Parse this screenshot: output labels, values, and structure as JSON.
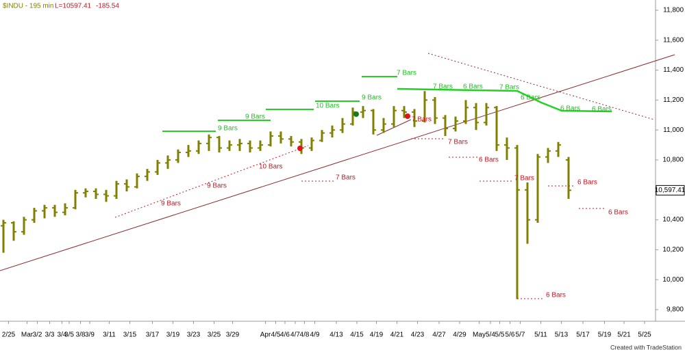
{
  "chart_data": {
    "type": "ohlc",
    "title": "$INDU - 195 min",
    "last_label": "L=10597.41",
    "change": "-185.54",
    "last_price_tag": "10,597.41",
    "credit": "Created with TradeStation",
    "color": "#808000",
    "x": [
      0,
      1,
      2,
      3,
      4,
      5,
      6,
      7,
      8,
      9,
      10,
      11,
      12,
      13,
      14,
      15,
      16,
      17,
      18,
      19,
      20,
      21,
      22,
      23,
      24,
      25,
      26,
      27,
      28,
      29,
      30,
      31,
      32,
      33,
      34,
      35,
      36,
      37,
      38,
      39,
      40,
      41,
      42,
      43,
      44,
      45,
      46,
      47,
      48,
      49,
      50,
      51,
      52,
      53,
      54,
      55
    ],
    "open": [
      10360,
      10380,
      10320,
      10400,
      10460,
      10480,
      10450,
      10480,
      10580,
      10590,
      10570,
      10560,
      10640,
      10620,
      10690,
      10720,
      10780,
      10800,
      10850,
      10860,
      10910,
      10950,
      10880,
      10900,
      10910,
      10880,
      10900,
      10960,
      10940,
      10920,
      10880,
      10930,
      10980,
      11000,
      11040,
      11120,
      11130,
      11000,
      11040,
      11130,
      11120,
      11060,
      11200,
      11080,
      11010,
      11060,
      11150,
      11050,
      11150,
      10900,
      10880,
      10600,
      10400,
      10820,
      10860,
      10800
    ],
    "high": [
      10400,
      10390,
      10420,
      10480,
      10500,
      10500,
      10510,
      10600,
      10610,
      10610,
      10600,
      10660,
      10670,
      10710,
      10740,
      10800,
      10830,
      10870,
      10900,
      10930,
      10970,
      10960,
      10930,
      10940,
      10930,
      10930,
      10990,
      10990,
      10960,
      10940,
      10950,
      11000,
      11030,
      11080,
      11150,
      11160,
      11140,
      11080,
      11160,
      11160,
      11140,
      11260,
      11220,
      11100,
      11090,
      11200,
      11180,
      11180,
      11160,
      10950,
      10900,
      10650,
      10840,
      10880,
      10920,
      10820
    ],
    "low": [
      10180,
      10260,
      10300,
      10380,
      10410,
      10420,
      10430,
      10470,
      10550,
      10540,
      10520,
      10540,
      10590,
      10610,
      10660,
      10700,
      10740,
      10780,
      10820,
      10840,
      10860,
      10850,
      10860,
      10860,
      10850,
      10860,
      10890,
      10910,
      10890,
      10840,
      10860,
      10920,
      10950,
      10980,
      11030,
      11080,
      10970,
      10980,
      11020,
      11080,
      11020,
      11050,
      11040,
      10960,
      10990,
      11040,
      11000,
      11030,
      10860,
      10800,
      9870,
      10240,
      10380,
      10780,
      10820,
      10540
    ],
    "close": [
      10380,
      10320,
      10400,
      10460,
      10480,
      10450,
      10480,
      10580,
      10590,
      10570,
      10560,
      10640,
      10620,
      10690,
      10720,
      10780,
      10800,
      10850,
      10860,
      10910,
      10950,
      10880,
      10900,
      10910,
      10880,
      10900,
      10960,
      10940,
      10920,
      10880,
      10930,
      10980,
      11000,
      11040,
      11120,
      11130,
      11000,
      11040,
      11130,
      11120,
      11060,
      11200,
      11080,
      11010,
      11060,
      11150,
      11050,
      11150,
      10900,
      10880,
      10600,
      10400,
      10820,
      10860,
      10900,
      10597.41
    ],
    "xlim": [
      0,
      63
    ],
    "xticks": [
      {
        "value": 0.5,
        "label": "2/25"
      },
      {
        "value": 2.3,
        "label": "Mar"
      },
      {
        "value": 3.3,
        "label": "3/2"
      },
      {
        "value": 4.5,
        "label": "3/3"
      },
      {
        "value": 5.7,
        "label": "3/4"
      },
      {
        "value": 6.4,
        "label": "3/5"
      },
      {
        "value": 7.5,
        "label": "3/8"
      },
      {
        "value": 8.4,
        "label": "3/9"
      },
      {
        "value": 10.3,
        "label": "3/11"
      },
      {
        "value": 12.3,
        "label": "3/15"
      },
      {
        "value": 14.5,
        "label": "3/17"
      },
      {
        "value": 16.5,
        "label": "3/19"
      },
      {
        "value": 18.5,
        "label": "3/23"
      },
      {
        "value": 20.5,
        "label": "3/25"
      },
      {
        "value": 22.3,
        "label": "3/29"
      },
      {
        "value": 25.5,
        "label": "Apr"
      },
      {
        "value": 26.5,
        "label": "4/5"
      },
      {
        "value": 27.4,
        "label": "4/6"
      },
      {
        "value": 28.4,
        "label": "4/7"
      },
      {
        "value": 29.3,
        "label": "4/8"
      },
      {
        "value": 30.3,
        "label": "4/9"
      },
      {
        "value": 32.4,
        "label": "4/13"
      },
      {
        "value": 34.4,
        "label": "4/15"
      },
      {
        "value": 36.3,
        "label": "4/19"
      },
      {
        "value": 38.3,
        "label": "4/21"
      },
      {
        "value": 40.3,
        "label": "4/23"
      },
      {
        "value": 42.4,
        "label": "4/27"
      },
      {
        "value": 44.4,
        "label": "4/29"
      },
      {
        "value": 46.3,
        "label": "May"
      },
      {
        "value": 47.4,
        "label": "5/4"
      },
      {
        "value": 48.3,
        "label": "5/5"
      },
      {
        "value": 49.3,
        "label": "5/6"
      },
      {
        "value": 50.3,
        "label": "5/7"
      },
      {
        "value": 52.3,
        "label": "5/11"
      },
      {
        "value": 54.3,
        "label": "5/13"
      },
      {
        "value": 56.4,
        "label": "5/17"
      },
      {
        "value": 58.5,
        "label": "5/19"
      },
      {
        "value": 60.4,
        "label": "5/21"
      },
      {
        "value": 62.4,
        "label": "5/25"
      }
    ],
    "ylim": [
      9800,
      11800
    ],
    "yticks": [
      {
        "value": 9800,
        "label": "9,800"
      },
      {
        "value": 10000,
        "label": "10,000"
      },
      {
        "value": 10200,
        "label": "10,200"
      },
      {
        "value": 10400,
        "label": "10,400"
      },
      {
        "value": 10600,
        "label": "10,600"
      },
      {
        "value": 10800,
        "label": "10,800"
      },
      {
        "value": 11000,
        "label": "11,000"
      },
      {
        "value": 11200,
        "label": "11,200"
      },
      {
        "value": 11400,
        "label": "11,400"
      },
      {
        "value": 11600,
        "label": "11,600"
      },
      {
        "value": 11800,
        "label": "11,800"
      }
    ],
    "green_labels": [
      "9 Bars",
      "9 Bars",
      "10 Bars",
      "9 Bars",
      "7 Bars",
      "7 Bars",
      "6 Bars",
      "7 Bars",
      "6 Bars",
      "6 Bars",
      "6 Bars"
    ],
    "red_labels": [
      "9 Bars",
      "9 Bars",
      "10 Bars",
      "7 Bars",
      "7 Bars",
      "7 Bars",
      "6 Bars",
      "7 Bars",
      "6 Bars",
      "6 Bars",
      "6 Bars"
    ]
  }
}
